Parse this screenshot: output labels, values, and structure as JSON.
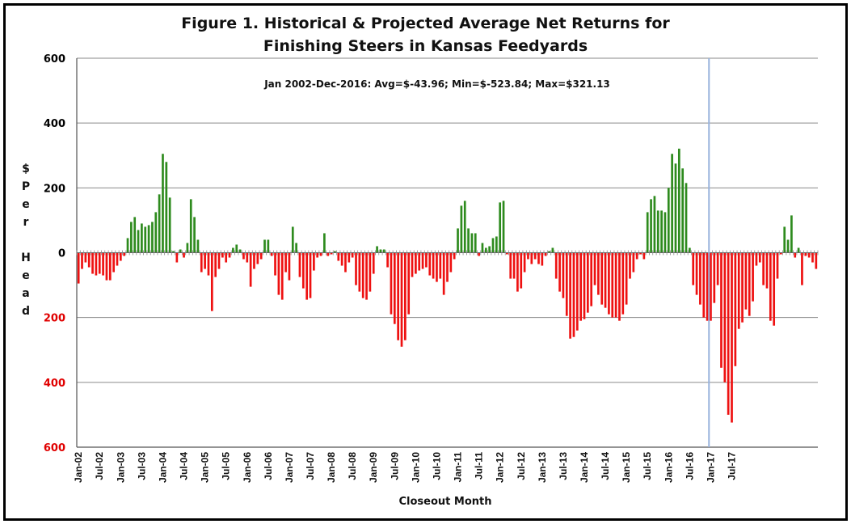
{
  "chart_data": {
    "type": "bar",
    "title": "Figure 1.  Historical & Projected Average Net Returns for",
    "title_line2": "Finishing Steers in Kansas Feedyards",
    "ylabel": "$ Per Head",
    "ylabel_chars": [
      "$",
      "P",
      "e",
      "r",
      "",
      "H",
      "e",
      "a",
      "d"
    ],
    "xlabel": "Closeout Month",
    "annotation": "Jan 2002-Dec-2016:  Avg=$-43.96; Min=$-523.84; Max=$321.13",
    "ylim": [
      -600,
      600
    ],
    "yticks": [
      {
        "value": 600,
        "label": "600",
        "color": "#000000"
      },
      {
        "value": 400,
        "label": "400",
        "color": "#000000"
      },
      {
        "value": 200,
        "label": "200",
        "color": "#000000"
      },
      {
        "value": 0,
        "label": "0",
        "color": "#000000"
      },
      {
        "value": -200,
        "label": "200",
        "color": "#e00000"
      },
      {
        "value": -400,
        "label": "400",
        "color": "#e00000"
      },
      {
        "value": -600,
        "label": "600",
        "color": "#e00000"
      }
    ],
    "grid": true,
    "positive_color": "#2e8b1e",
    "negative_color": "#ee1111",
    "divider_color": "#99b3dd",
    "divider_x_label": "Jan-17",
    "start_month": "Jan-02",
    "xtick_every": 6,
    "xtick_labels": [
      "Jan-02",
      "Jul-02",
      "Jan-03",
      "Jul-03",
      "Jan-04",
      "Jul-04",
      "Jan-05",
      "Jul-05",
      "Jan-06",
      "Jul-06",
      "Jan-07",
      "Jul-07",
      "Jan-08",
      "Jul-08",
      "Jan-09",
      "Jul-09",
      "Jan-10",
      "Jul-10",
      "Jan-11",
      "Jul-11",
      "Jan-12",
      "Jul-12",
      "Jan-13",
      "Jul-13",
      "Jan-14",
      "Jul-14",
      "Jan-15",
      "Jul-15",
      "Jan-16",
      "Jul-16",
      "Jan-17",
      "Jul-17"
    ],
    "values": [
      -95,
      -50,
      -30,
      -45,
      -65,
      -70,
      -65,
      -70,
      -85,
      -85,
      -60,
      -40,
      -25,
      -10,
      45,
      95,
      110,
      70,
      90,
      80,
      85,
      95,
      125,
      180,
      305,
      280,
      170,
      5,
      -30,
      10,
      -15,
      30,
      165,
      110,
      40,
      -60,
      -50,
      -70,
      -180,
      -75,
      -50,
      -15,
      -30,
      -15,
      15,
      25,
      10,
      -20,
      -30,
      -105,
      -50,
      -35,
      -20,
      40,
      40,
      -10,
      -70,
      -130,
      -145,
      -60,
      -85,
      80,
      30,
      -75,
      -110,
      -145,
      -140,
      -55,
      -15,
      -10,
      60,
      -10,
      -5,
      5,
      -25,
      -40,
      -60,
      -30,
      -15,
      -100,
      -120,
      -140,
      -145,
      -120,
      -65,
      20,
      10,
      10,
      -45,
      -190,
      -220,
      -270,
      -290,
      -270,
      -190,
      -75,
      -65,
      -55,
      -50,
      -45,
      -70,
      -80,
      -90,
      -80,
      -130,
      -90,
      -60,
      -20,
      75,
      145,
      160,
      75,
      60,
      60,
      -10,
      30,
      15,
      20,
      45,
      50,
      155,
      160,
      -5,
      -80,
      -80,
      -120,
      -110,
      -60,
      -20,
      -35,
      -20,
      -35,
      -40,
      -10,
      5,
      15,
      -80,
      -120,
      -140,
      -195,
      -265,
      -260,
      -240,
      -210,
      -205,
      -185,
      -165,
      -100,
      -130,
      -160,
      -170,
      -190,
      -200,
      -200,
      -210,
      -190,
      -160,
      -80,
      -60,
      -20,
      -5,
      -20,
      125,
      165,
      175,
      130,
      130,
      125,
      200,
      305,
      275,
      321,
      260,
      215,
      15,
      -100,
      -130,
      -160,
      -200,
      -210,
      -210,
      -155,
      -100,
      -355,
      -400,
      -500,
      -524,
      -350,
      -235,
      -215,
      -175,
      -195,
      -150,
      -40,
      -30,
      -100,
      -110,
      -210,
      -225,
      -80,
      -5,
      80,
      40,
      115,
      -15,
      15,
      -100,
      -10,
      -15,
      -30,
      -50
    ]
  }
}
